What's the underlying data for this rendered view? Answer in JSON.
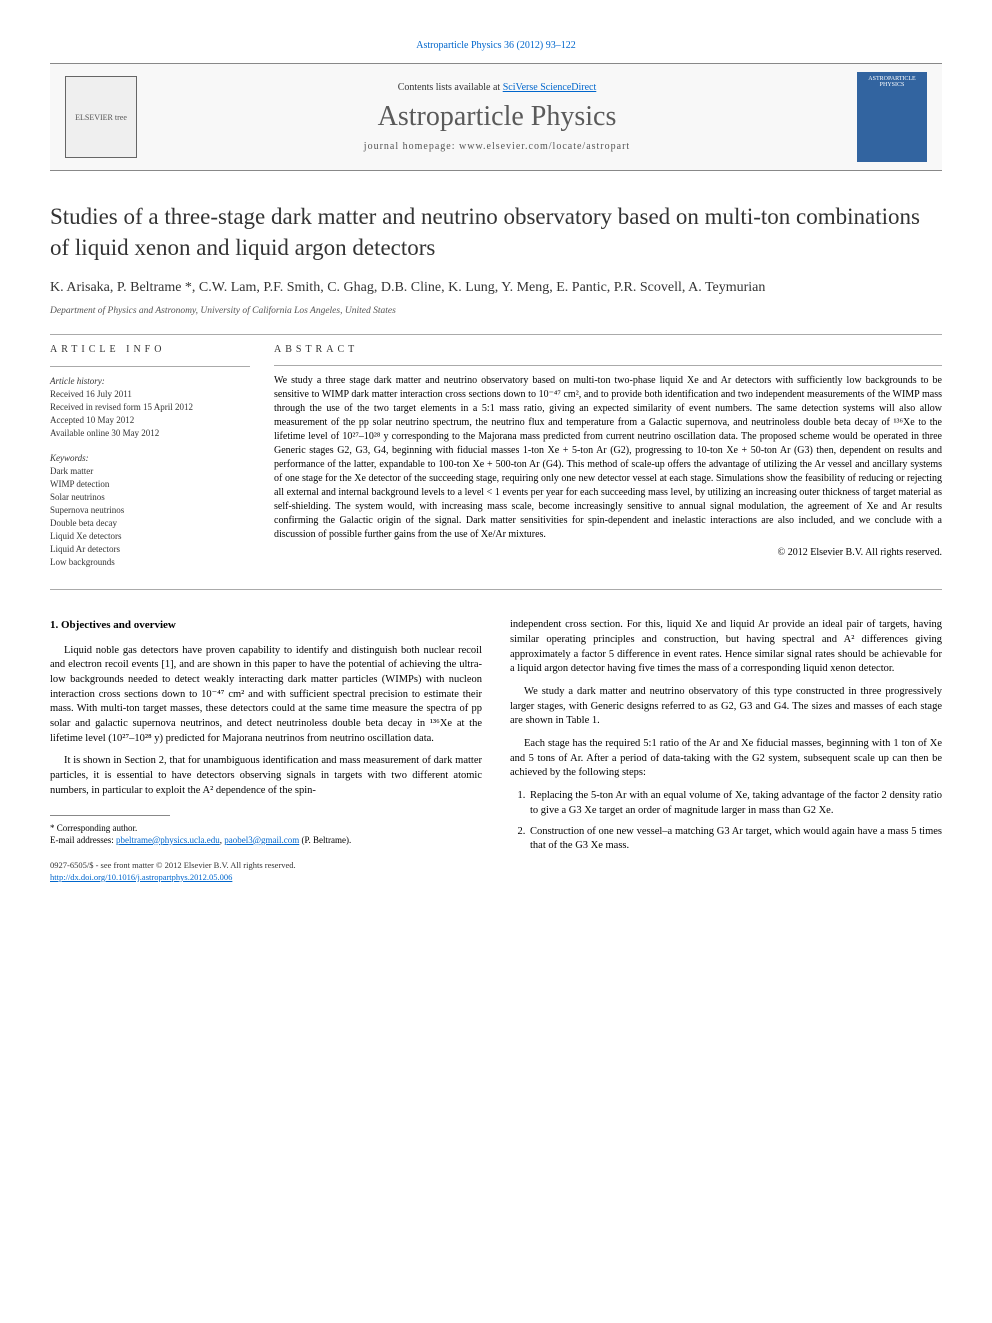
{
  "journal_ref_text": "Astroparticle Physics 36 (2012) 93–122",
  "header": {
    "publisher_logo_label": "ELSEVIER tree",
    "contents_prefix": "Contents lists available at ",
    "contents_link": "SciVerse ScienceDirect",
    "journal_name": "Astroparticle Physics",
    "homepage_label": "journal homepage: www.elsevier.com/locate/astropart",
    "cover_label": "ASTROPARTICLE PHYSICS"
  },
  "title": "Studies of a three-stage dark matter and neutrino observatory based on multi-ton combinations of liquid xenon and liquid argon detectors",
  "authors_line": "K. Arisaka, P. Beltrame *, C.W. Lam, P.F. Smith, C. Ghag, D.B. Cline, K. Lung, Y. Meng, E. Pantic, P.R. Scovell, A. Teymurian",
  "affiliation": "Department of Physics and Astronomy, University of California Los Angeles, United States",
  "info": {
    "heading": "ARTICLE INFO",
    "history_label": "Article history:",
    "received": "Received 16 July 2011",
    "revised": "Received in revised form 15 April 2012",
    "accepted": "Accepted 10 May 2012",
    "online": "Available online 30 May 2012",
    "keywords_label": "Keywords:",
    "keywords": [
      "Dark matter",
      "WIMP detection",
      "Solar neutrinos",
      "Supernova neutrinos",
      "Double beta decay",
      "Liquid Xe detectors",
      "Liquid Ar detectors",
      "Low backgrounds"
    ]
  },
  "abstract": {
    "heading": "ABSTRACT",
    "text": "We study a three stage dark matter and neutrino observatory based on multi-ton two-phase liquid Xe and Ar detectors with sufficiently low backgrounds to be sensitive to WIMP dark matter interaction cross sections down to 10⁻⁴⁷ cm², and to provide both identification and two independent measurements of the WIMP mass through the use of the two target elements in a 5:1 mass ratio, giving an expected similarity of event numbers. The same detection systems will also allow measurement of the pp solar neutrino spectrum, the neutrino flux and temperature from a Galactic supernova, and neutrinoless double beta decay of ¹³⁶Xe to the lifetime level of 10²⁷–10²⁸ y corresponding to the Majorana mass predicted from current neutrino oscillation data. The proposed scheme would be operated in three Generic stages G2, G3, G4, beginning with fiducial masses 1-ton Xe + 5-ton Ar (G2), progressing to 10-ton Xe + 50-ton Ar (G3) then, dependent on results and performance of the latter, expandable to 100-ton Xe + 500-ton Ar (G4). This method of scale-up offers the advantage of utilizing the Ar vessel and ancillary systems of one stage for the Xe detector of the succeeding stage, requiring only one new detector vessel at each stage. Simulations show the feasibility of reducing or rejecting all external and internal background levels to a level < 1 events per year for each succeeding mass level, by utilizing an increasing outer thickness of target material as self-shielding. The system would, with increasing mass scale, become increasingly sensitive to annual signal modulation, the agreement of Xe and Ar results confirming the Galactic origin of the signal. Dark matter sensitivities for spin-dependent and inelastic interactions are also included, and we conclude with a discussion of possible further gains from the use of Xe/Ar mixtures.",
    "copyright": "© 2012 Elsevier B.V. All rights reserved."
  },
  "body": {
    "section_heading": "1. Objectives and overview",
    "p1": "Liquid noble gas detectors have proven capability to identify and distinguish both nuclear recoil and electron recoil events [1], and are shown in this paper to have the potential of achieving the ultra-low backgrounds needed to detect weakly interacting dark matter particles (WIMPs) with nucleon interaction cross sections down to 10⁻⁴⁷ cm² and with sufficient spectral precision to estimate their mass. With multi-ton target masses, these detectors could at the same time measure the spectra of pp solar and galactic supernova neutrinos, and detect neutrinoless double beta decay in ¹³⁶Xe at the lifetime level (10²⁷–10²⁸ y) predicted for Majorana neutrinos from neutrino oscillation data.",
    "p2": "It is shown in Section 2, that for unambiguous identification and mass measurement of dark matter particles, it is essential to have detectors observing signals in targets with two different atomic numbers, in particular to exploit the A² dependence of the spin-",
    "p3": "independent cross section. For this, liquid Xe and liquid Ar provide an ideal pair of targets, having similar operating principles and construction, but having spectral and A² differences giving approximately a factor 5 difference in event rates. Hence similar signal rates should be achievable for a liquid argon detector having five times the mass of a corresponding liquid xenon detector.",
    "p4": "We study a dark matter and neutrino observatory of this type constructed in three progressively larger stages, with Generic designs referred to as G2, G3 and G4. The sizes and masses of each stage are shown in Table 1.",
    "p5": "Each stage has the required 5:1 ratio of the Ar and Xe fiducial masses, beginning with 1 ton of Xe and 5 tons of Ar. After a period of data-taking with the G2 system, subsequent scale up can then be achieved by the following steps:",
    "step1": "Replacing the 5-ton Ar with an equal volume of Xe, taking advantage of the factor 2 density ratio to give a G3 Xe target an order of magnitude larger in mass than G2 Xe.",
    "step2": "Construction of one new vessel–a matching G3 Ar target, which would again have a mass 5 times that of the G3 Xe mass."
  },
  "footnotes": {
    "corr": "* Corresponding author.",
    "emails_label": "E-mail addresses: ",
    "email1": "pbeltrame@physics.ucla.edu",
    "email_sep": ", ",
    "email2": "paobel3@gmail.com",
    "emails_suffix": " (P. Beltrame)."
  },
  "footer": {
    "issn_line": "0927-6505/$ - see front matter © 2012 Elsevier B.V. All rights reserved.",
    "doi": "http://dx.doi.org/10.1016/j.astropartphys.2012.05.006"
  },
  "colors": {
    "link": "#0066cc",
    "journal_cover_bg": "#3264a0",
    "text": "#000000",
    "muted": "#555555"
  },
  "typography": {
    "title_fontsize": 23,
    "journal_name_fontsize": 28,
    "body_fontsize": 10.5,
    "abstract_fontsize": 10,
    "info_fontsize": 9
  }
}
